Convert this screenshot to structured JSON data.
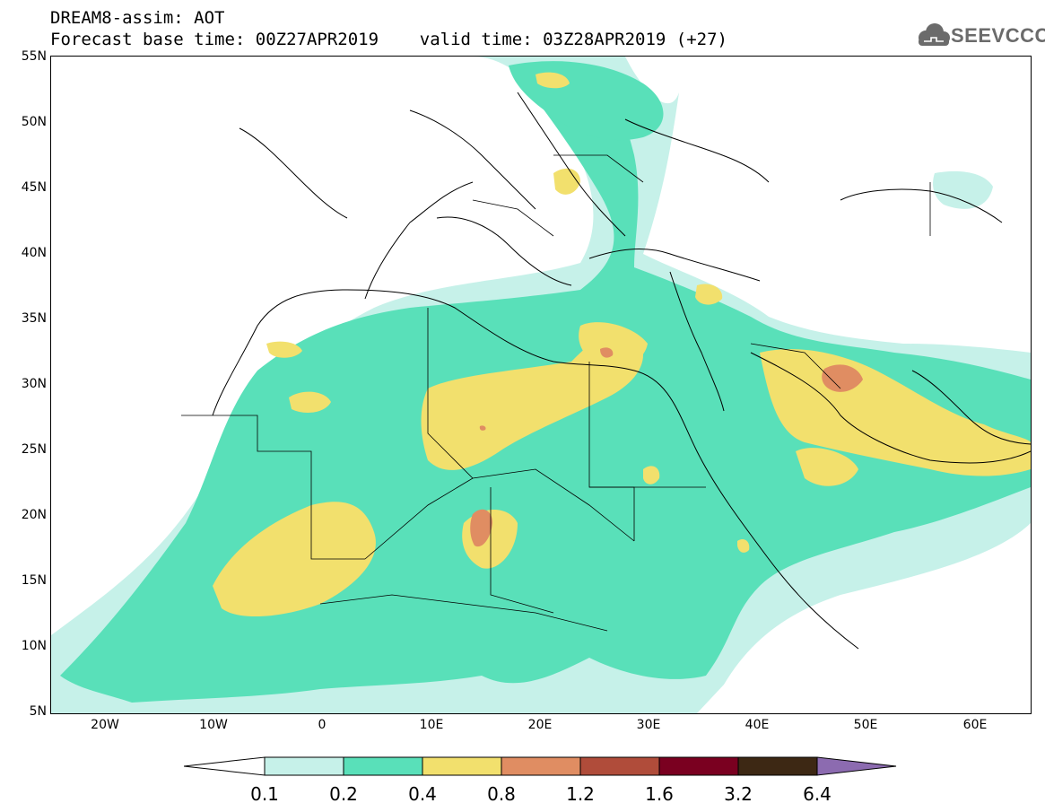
{
  "header": {
    "title": "DREAM8-assim: AOT",
    "subtitle": "Forecast base time: 00Z27APR2019    valid time: 03Z28APR2019 (+27)"
  },
  "logo": {
    "text": "SEEVCCC",
    "icon": "cloud-icon"
  },
  "map": {
    "extent": {
      "lon_min": -25,
      "lon_max": 65,
      "lat_min": 5,
      "lat_max": 55
    },
    "lat_labels": [
      "55N",
      "50N",
      "45N",
      "40N",
      "35N",
      "30N",
      "25N",
      "20N",
      "15N",
      "10N",
      "5N"
    ],
    "lon_labels": [
      "20W",
      "10W",
      "0",
      "10E",
      "20E",
      "30E",
      "40E",
      "50E",
      "60E"
    ],
    "colors": {
      "level_0_1": "#c6f1e9",
      "level_0_2": "#59e0b9",
      "level_0_4": "#f2e06d",
      "level_0_8": "#e08d62",
      "level_1_2": "#b04c3a",
      "level_1_6": "#7a0020",
      "level_3_2": "#3d2814",
      "level_6_4": "#8c6bb0"
    }
  },
  "colorbar": {
    "labels": [
      "0.1",
      "0.2",
      "0.4",
      "0.8",
      "1.2",
      "1.6",
      "3.2",
      "6.4"
    ],
    "colors": [
      "#c6f1e9",
      "#59e0b9",
      "#f2e06d",
      "#e08d62",
      "#b04c3a",
      "#7a0020",
      "#3d2814"
    ],
    "low_extend_color": "#ffffff",
    "high_extend_color": "#8c6bb0"
  }
}
